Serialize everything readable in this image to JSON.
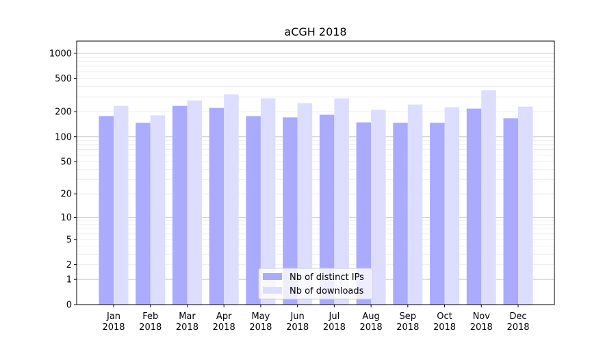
{
  "chart_data": {
    "type": "bar",
    "title": "aCGH 2018",
    "xlabel": "",
    "ylabel": "",
    "yscale": "log(1+y)",
    "ylim": [
      0,
      1400
    ],
    "yticks": [
      0,
      1,
      2,
      5,
      10,
      20,
      50,
      100,
      200,
      500,
      1000
    ],
    "grid": true,
    "legend_position": "bottom-center",
    "categories": [
      "Jan\n2018",
      "Feb\n2018",
      "Mar\n2018",
      "Apr\n2018",
      "May\n2018",
      "Jun\n2018",
      "Jul\n2018",
      "Aug\n2018",
      "Sep\n2018",
      "Oct\n2018",
      "Nov\n2018",
      "Dec\n2018"
    ],
    "series": [
      {
        "name": "Nb of distinct IPs",
        "color": "#aaaaff",
        "values": [
          177,
          147,
          235,
          222,
          177,
          171,
          184,
          149,
          147,
          147,
          218,
          167
        ]
      },
      {
        "name": "Nb of downloads",
        "color": "#ddddff",
        "values": [
          235,
          181,
          273,
          323,
          289,
          253,
          289,
          210,
          244,
          226,
          362,
          230
        ]
      }
    ]
  }
}
